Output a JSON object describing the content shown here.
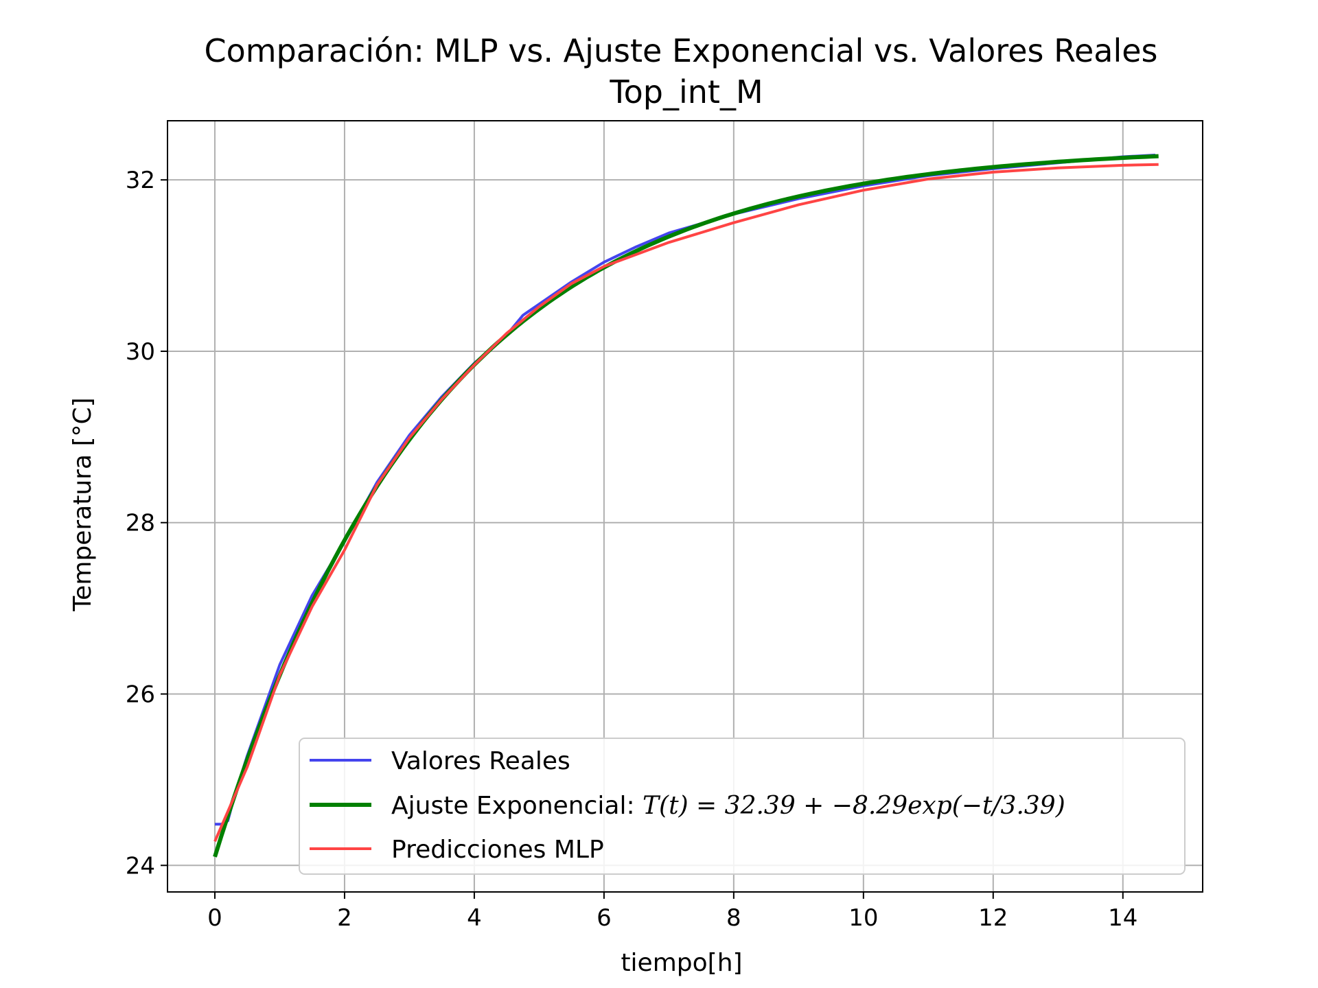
{
  "chart_data": {
    "type": "line",
    "title": "Comparación: MLP vs. Ajuste Exponencial vs. Valores Reales",
    "subtitle": "Top_int_M",
    "xlabel": "tiempo[h]",
    "ylabel": "Temperatura [°C]",
    "xlim": [
      -0.73,
      15.23
    ],
    "ylim": [
      23.69,
      32.69
    ],
    "xticks": [
      0,
      2,
      4,
      6,
      8,
      10,
      12,
      14
    ],
    "yticks": [
      24,
      26,
      28,
      30,
      32
    ],
    "grid": true,
    "legend_position": "lower-right",
    "legend": {
      "real_label": "Valores Reales",
      "fit_label_prefix": "Ajuste Exponencial: ",
      "fit_equation": "T(t) = 32.39 + −8.29exp(−t/3.39)",
      "mlp_label": "Predicciones MLP"
    },
    "series": [
      {
        "name": "Valores Reales",
        "color": "#4444ee",
        "x": [
          0,
          0.1,
          0.2,
          0.3,
          0.5,
          1,
          1.5,
          2,
          2.5,
          3,
          3.5,
          4,
          4.5,
          4.75,
          5,
          5.5,
          6,
          6.5,
          7,
          8,
          9,
          10,
          11,
          12,
          13,
          14,
          14.5
        ],
        "y": [
          24.48,
          24.48,
          24.52,
          24.8,
          25.28,
          26.34,
          27.15,
          27.78,
          28.47,
          29.02,
          29.47,
          29.86,
          30.19,
          30.42,
          30.55,
          30.81,
          31.04,
          31.22,
          31.38,
          31.6,
          31.78,
          31.93,
          32.05,
          32.13,
          32.2,
          32.27,
          32.29
        ]
      },
      {
        "name": "Ajuste Exponencial",
        "color": "#008000",
        "function": {
          "a": 32.39,
          "b": -8.29,
          "tau": 3.39
        },
        "x_range": [
          0,
          14.55
        ]
      },
      {
        "name": "Predicciones MLP",
        "color": "#ff4444",
        "x": [
          0,
          0.5,
          1,
          1.5,
          2,
          2.5,
          3,
          3.5,
          4,
          4.5,
          5,
          5.5,
          6,
          7,
          8,
          9,
          10,
          11,
          12,
          13,
          14,
          14.55
        ],
        "y": [
          24.28,
          25.15,
          26.22,
          27.02,
          27.68,
          28.44,
          28.99,
          29.44,
          29.84,
          30.21,
          30.52,
          30.79,
          30.99,
          31.27,
          31.5,
          31.71,
          31.88,
          32.01,
          32.09,
          32.14,
          32.17,
          32.18
        ]
      }
    ]
  }
}
